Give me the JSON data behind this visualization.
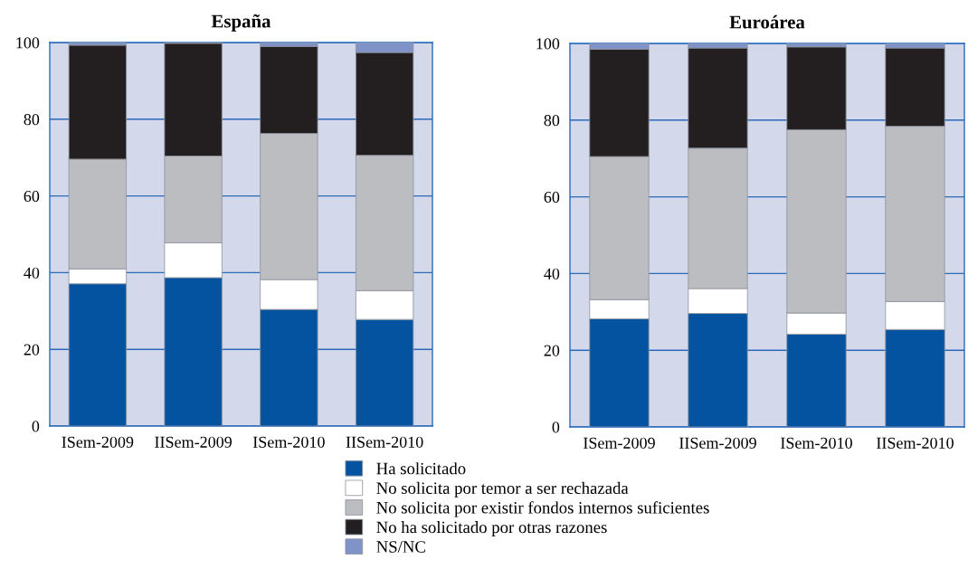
{
  "chart_data": [
    {
      "type": "bar",
      "title": "España",
      "categories": [
        "ISem-2009",
        "IISem-2009",
        "ISem-2010",
        "IISem-2010"
      ],
      "stacked": true,
      "ylim": [
        0,
        100
      ],
      "yticks": [
        0,
        20,
        40,
        60,
        80,
        100
      ],
      "grid": "y",
      "legend": "bottom",
      "series": [
        {
          "name": "Ha solicitado",
          "color": "#0353a0",
          "values": [
            37.1,
            38.7,
            30.4,
            27.8
          ]
        },
        {
          "name": "No solicita por temor a ser rechazada",
          "color": "#ffffff",
          "values": [
            3.9,
            9.1,
            7.8,
            7.5
          ]
        },
        {
          "name": "No solicita por existir fondos internos suficientes",
          "color": "#bcbdc1",
          "values": [
            28.6,
            22.6,
            38.1,
            35.3
          ]
        },
        {
          "name": "No ha solicitado por otras razones",
          "color": "#231f20",
          "values": [
            29.7,
            29.4,
            22.7,
            26.8
          ]
        },
        {
          "name": "NS/NC",
          "color": "#7f93c8",
          "values": [
            0.7,
            0.2,
            1.0,
            2.6
          ]
        }
      ]
    },
    {
      "type": "bar",
      "title": "Euroárea",
      "categories": [
        "ISem-2009",
        "IISem-2009",
        "ISem-2010",
        "IISem-2010"
      ],
      "stacked": true,
      "ylim": [
        0,
        100
      ],
      "yticks": [
        0,
        20,
        40,
        60,
        80,
        100
      ],
      "grid": "y",
      "series": [
        {
          "color": "#0353a0",
          "values": [
            28.2,
            29.6,
            24.2,
            25.4
          ]
        },
        {
          "color": "#ffffff",
          "values": [
            5.0,
            6.5,
            5.5,
            7.3
          ]
        },
        {
          "color": "#bcbdc1",
          "values": [
            37.3,
            36.6,
            47.8,
            45.7
          ]
        },
        {
          "color": "#231f20",
          "values": [
            28.0,
            26.1,
            21.6,
            20.4
          ]
        },
        {
          "color": "#7f93c8",
          "values": [
            1.5,
            1.2,
            0.9,
            1.2
          ]
        }
      ]
    }
  ]
}
